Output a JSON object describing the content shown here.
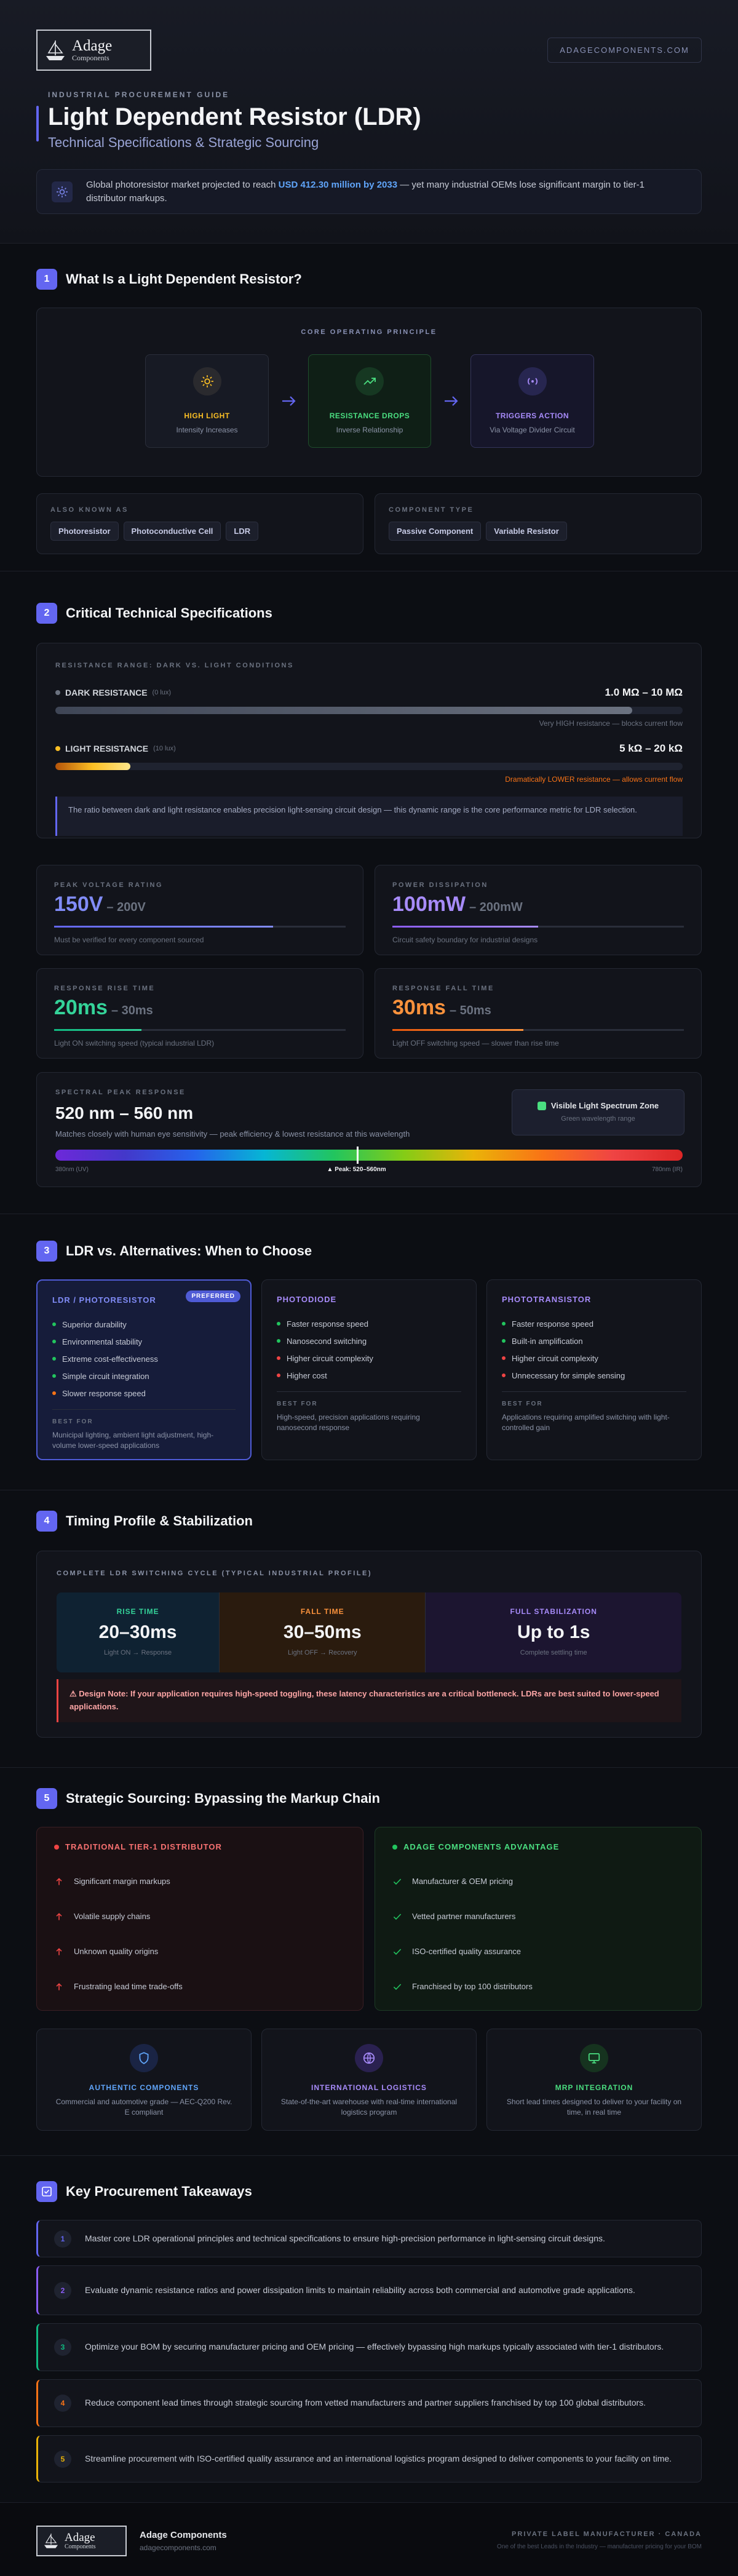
{
  "header": {
    "logo": {
      "name": "Adage",
      "tagline": "Components"
    },
    "site": "ADAGECOMPONENTS.COM",
    "eyebrow": "INDUSTRIAL PROCUREMENT GUIDE",
    "title": "Light Dependent Resistor (LDR)",
    "subtitle": "Technical Specifications & Strategic Sourcing",
    "callout": {
      "before": "Global photoresistor market projected to reach ",
      "highlight": "USD 412.30 million by 2033",
      "after": " — yet many industrial OEMs lose significant margin to tier-1 distributor markups."
    }
  },
  "what_is": {
    "number": "1",
    "heading": "What Is a Light Dependent Resistor?",
    "principle_label": "CORE OPERATING PRINCIPLE",
    "steps": [
      {
        "title": "HIGH LIGHT",
        "desc": "Intensity Increases"
      },
      {
        "title": "RESISTANCE DROPS",
        "desc": "Inverse Relationship"
      },
      {
        "title": "TRIGGERS ACTION",
        "desc": "Via Voltage Divider Circuit"
      }
    ],
    "aka": {
      "label": "ALSO KNOWN AS",
      "items": [
        "Photoresistor",
        "Photoconductive Cell",
        "LDR"
      ]
    },
    "component_type": {
      "label": "COMPONENT TYPE",
      "items": [
        "Passive Component",
        "Variable Resistor"
      ]
    }
  },
  "specs": {
    "number": "2",
    "heading": "Critical Technical Specifications",
    "range": {
      "label": "RESISTANCE RANGE: DARK VS. LIGHT CONDITIONS",
      "dark": {
        "name": "DARK RESISTANCE",
        "cond": "(0 lux)",
        "value": "1.0 MΩ – 10 MΩ",
        "note": "Very HIGH resistance — blocks current flow"
      },
      "light": {
        "name": "LIGHT RESISTANCE",
        "cond": "(10 lux)",
        "value": "5 kΩ – 20 kΩ",
        "note": "Dramatically LOWER resistance — allows current flow"
      }
    },
    "note": "The ratio between dark and light resistance enables precision light-sensing circuit design — this dynamic range is the core performance metric for LDR selection.",
    "cards": [
      {
        "label": "PEAK VOLTAGE RATING",
        "value": "150V",
        "range": "– 200V",
        "note": "Must be verified for every component sourced"
      },
      {
        "label": "POWER DISSIPATION",
        "value": "100mW",
        "range": "– 200mW",
        "note": "Circuit safety boundary for industrial designs"
      },
      {
        "label": "RESPONSE RISE TIME",
        "value": "20ms",
        "range": "– 30ms",
        "note": "Light ON switching speed (typical industrial LDR)"
      },
      {
        "label": "RESPONSE FALL TIME",
        "value": "30ms",
        "range": "– 50ms",
        "note": "Light OFF switching speed — slower than rise time"
      }
    ],
    "spectral": {
      "label": "SPECTRAL PEAK RESPONSE",
      "value": "520 nm – 560 nm",
      "desc": "Matches closely with human eye sensitivity — peak efficiency & lowest resistance at this wavelength",
      "zone_title": "Visible Light Spectrum Zone",
      "zone_sub": "Green wavelength range",
      "scale_start": "380nm (UV)",
      "peak": "▲ Peak: 520–560nm",
      "scale_end": "780nm (IR)"
    }
  },
  "alternatives": {
    "number": "3",
    "heading": "LDR vs. Alternatives: When to Choose",
    "cards": [
      {
        "title": "LDR / PHOTORESISTOR",
        "badge": "PREFERRED",
        "pros": [
          "Superior durability",
          "Environmental stability",
          "Extreme cost-effectiveness",
          "Simple circuit integration"
        ],
        "cons": [
          "Slower response speed"
        ],
        "best_for_label": "BEST FOR",
        "best_for": "Municipal lighting, ambient light adjustment, high-volume lower-speed applications"
      },
      {
        "title": "PHOTODIODE",
        "pros": [
          "Faster response speed",
          "Nanosecond switching"
        ],
        "cons": [
          "Higher circuit complexity",
          "Higher cost"
        ],
        "best_for_label": "BEST FOR",
        "best_for": "High-speed, precision applications requiring nanosecond response"
      },
      {
        "title": "PHOTOTRANSISTOR",
        "pros": [
          "Faster response speed",
          "Built-in amplification"
        ],
        "cons": [
          "Higher circuit complexity",
          "Unnecessary for simple sensing"
        ],
        "best_for_label": "BEST FOR",
        "best_for": "Applications requiring amplified switching with light-controlled gain"
      }
    ]
  },
  "timing": {
    "number": "4",
    "heading": "Timing Profile & Stabilization",
    "label": "COMPLETE LDR SWITCHING CYCLE (TYPICAL INDUSTRIAL PROFILE)",
    "phases": [
      {
        "title": "RISE TIME",
        "value": "20–30ms",
        "desc": "Light ON → Response"
      },
      {
        "title": "FALL TIME",
        "value": "30–50ms",
        "desc": "Light OFF → Recovery"
      },
      {
        "title": "FULL STABILIZATION",
        "value": "Up to 1s",
        "desc": "Complete settling time"
      }
    ],
    "note": "⚠ Design Note: If your application requires high-speed toggling, these latency characteristics are a critical bottleneck. LDRs are best suited to lower-speed applications."
  },
  "sourcing": {
    "number": "5",
    "heading": "Strategic Sourcing: Bypassing the Markup Chain",
    "traditional": {
      "title": "TRADITIONAL TIER-1 DISTRIBUTOR",
      "items": [
        "Significant margin markups",
        "Volatile supply chains",
        "Unknown quality origins",
        "Frustrating lead time trade-offs"
      ]
    },
    "adage": {
      "title": "ADAGE COMPONENTS ADVANTAGE",
      "items": [
        "Manufacturer & OEM pricing",
        "Vetted partner manufacturers",
        "ISO-certified quality assurance",
        "Franchised by top 100 distributors"
      ]
    },
    "features": [
      {
        "title": "AUTHENTIC COMPONENTS",
        "desc": "Commercial and automotive grade — AEC-Q200 Rev. E compliant"
      },
      {
        "title": "INTERNATIONAL LOGISTICS",
        "desc": "State-of-the-art warehouse with real-time international logistics program"
      },
      {
        "title": "MRP INTEGRATION",
        "desc": "Short lead times designed to deliver to your facility on time, in real time"
      }
    ]
  },
  "takeaways": {
    "heading": "Key Procurement Takeaways",
    "items": [
      {
        "number": "1",
        "text": "Master core LDR operational principles and technical specifications to ensure high-precision performance in light-sensing circuit designs."
      },
      {
        "number": "2",
        "text": "Evaluate dynamic resistance ratios and power dissipation limits to maintain reliability across both commercial and automotive grade applications."
      },
      {
        "number": "3",
        "text": "Optimize your BOM by securing manufacturer pricing and OEM pricing — effectively bypassing high markups typically associated with tier-1 distributors."
      },
      {
        "number": "4",
        "text": "Reduce component lead times through strategic sourcing from vetted manufacturers and partner suppliers franchised by top 100 global distributors."
      },
      {
        "number": "5",
        "text": "Streamline procurement with ISO-certified quality assurance and an international logistics program designed to deliver components to your facility on time."
      }
    ]
  },
  "footer": {
    "logo": {
      "name": "Adage",
      "tagline": "Components"
    },
    "name": "Adage Components",
    "url": "adagecomponents.com",
    "tagline": "PRIVATE LABEL MANUFACTURER · CANADA",
    "note": "One of the best Leads in the Industry — manufacturer pricing for your BOM"
  }
}
